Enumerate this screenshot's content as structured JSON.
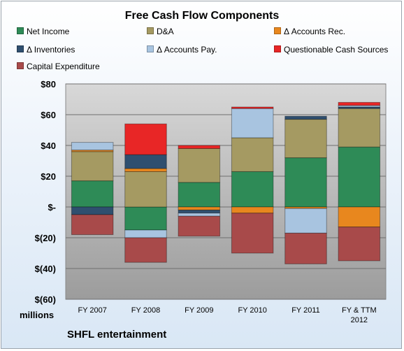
{
  "chart_data": {
    "type": "bar",
    "stacked": true,
    "title": "Free Cash Flow Components",
    "units_label": "millions",
    "footer": "SHFL entertainment",
    "ylim": [
      -60,
      80
    ],
    "yticks": [
      80,
      60,
      40,
      20,
      0,
      -20,
      -40,
      -60
    ],
    "ytick_labels": [
      "$80",
      "$60",
      "$40",
      "$20",
      "$-",
      "$(20)",
      "$(40)",
      "$(60)"
    ],
    "categories": [
      "FY 2007",
      "FY 2008",
      "FY 2009",
      "FY 2010",
      "FY 2011",
      "FY & TTM 2012"
    ],
    "grid": true,
    "legend": "top",
    "series": [
      {
        "name": "Net Income",
        "color": "#2e8b57",
        "values": [
          17,
          -15,
          16,
          23,
          32,
          39
        ]
      },
      {
        "name": "D&A",
        "color": "#a59a62",
        "values": [
          19,
          23,
          22,
          22,
          25,
          25
        ]
      },
      {
        "name": "Δ Accounts Rec.",
        "color": "#e8871e",
        "values": [
          1,
          2,
          -2,
          -4,
          -1,
          -13
        ]
      },
      {
        "name": "Δ Inventories",
        "color": "#2f4f6f",
        "values": [
          -5,
          9,
          -2,
          0,
          2,
          1
        ]
      },
      {
        "name": "Δ Accounts Pay.",
        "color": "#a8c4e0",
        "values": [
          5,
          -5,
          -2,
          19,
          -16,
          1
        ]
      },
      {
        "name": "Questionable Cash Sources",
        "color": "#e82626",
        "values": [
          0,
          20,
          2,
          1,
          0,
          2
        ]
      },
      {
        "name": "Capital Expenditure",
        "color": "#a84a4a",
        "values": [
          -13,
          -16,
          -13,
          -26,
          -20,
          -22
        ]
      }
    ]
  }
}
